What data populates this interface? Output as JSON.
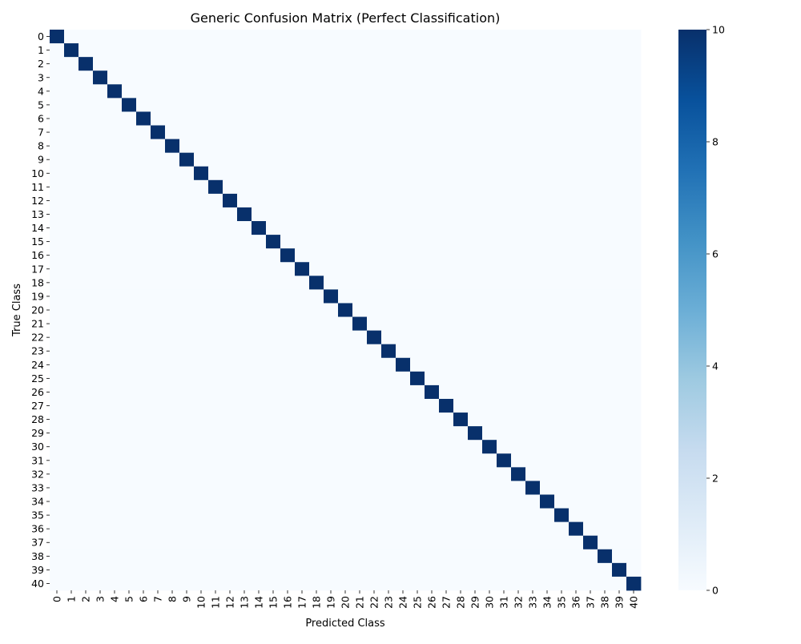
{
  "chart_data": {
    "type": "heatmap",
    "title": "Generic Confusion Matrix (Perfect Classification)",
    "xlabel": "Predicted Class",
    "ylabel": "True Class",
    "x_categories": [
      "0",
      "1",
      "2",
      "3",
      "4",
      "5",
      "6",
      "7",
      "8",
      "9",
      "10",
      "11",
      "12",
      "13",
      "14",
      "15",
      "16",
      "17",
      "18",
      "19",
      "20",
      "21",
      "22",
      "23",
      "24",
      "25",
      "26",
      "27",
      "28",
      "29",
      "30",
      "31",
      "32",
      "33",
      "34",
      "35",
      "36",
      "37",
      "38",
      "39",
      "40"
    ],
    "y_categories": [
      "0",
      "1",
      "2",
      "3",
      "4",
      "5",
      "6",
      "7",
      "8",
      "9",
      "10",
      "11",
      "12",
      "13",
      "14",
      "15",
      "16",
      "17",
      "18",
      "19",
      "20",
      "21",
      "22",
      "23",
      "24",
      "25",
      "26",
      "27",
      "28",
      "29",
      "30",
      "31",
      "32",
      "33",
      "34",
      "35",
      "36",
      "37",
      "38",
      "39",
      "40"
    ],
    "diagonal_value": 10,
    "off_diagonal_value": 0,
    "colormap": "Blues",
    "color_min": "#f7fbff",
    "color_max": "#08306b",
    "colorbar": {
      "range": [
        0,
        10
      ],
      "ticks": [
        "0",
        "2",
        "4",
        "6",
        "8",
        "10"
      ],
      "stops": [
        "#f7fbff",
        "#deebf7",
        "#c6dbef",
        "#9ecae1",
        "#6baed6",
        "#4292c6",
        "#2171b5",
        "#08519c",
        "#08306b"
      ]
    }
  }
}
